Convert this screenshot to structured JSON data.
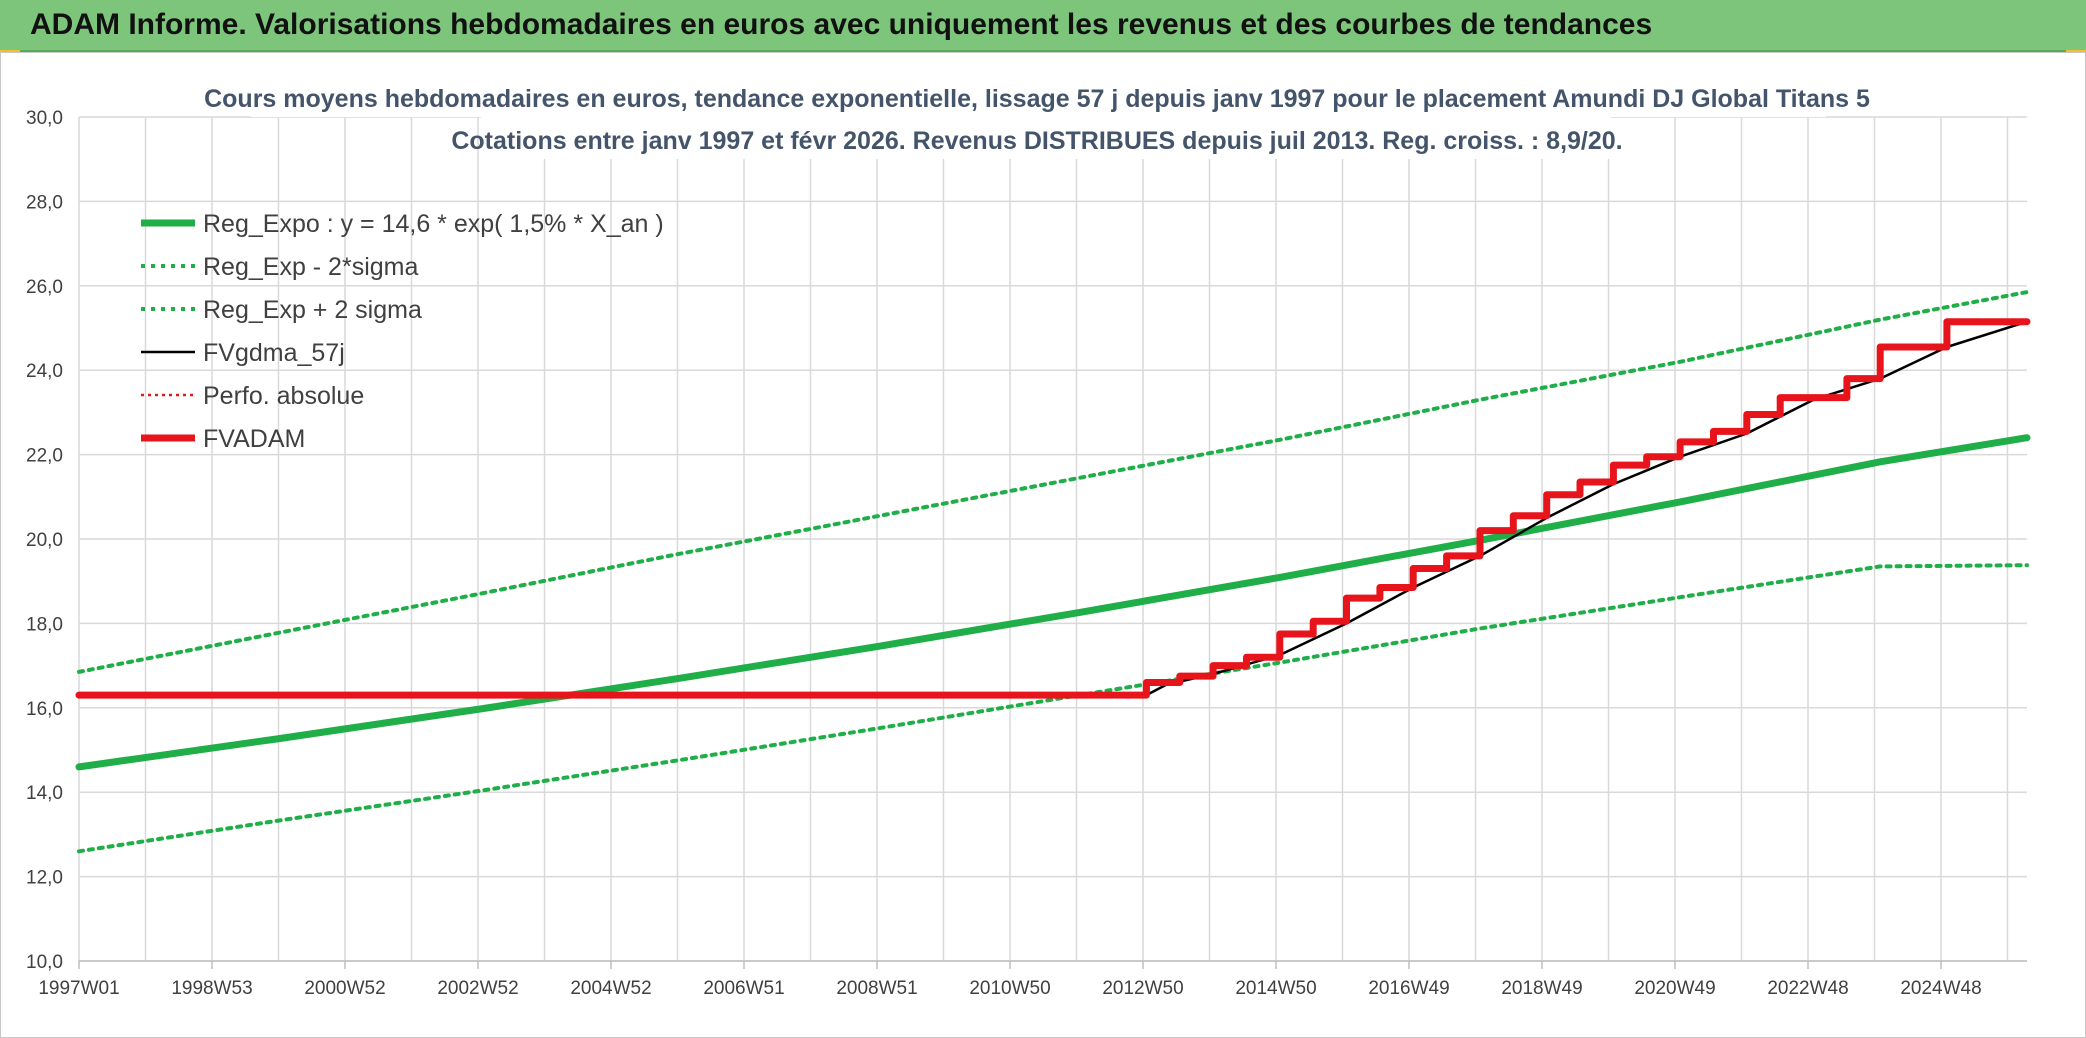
{
  "header": {
    "title": "ADAM Informe. Valorisations hebdomadaires en euros avec uniquement les revenus et des courbes de tendances"
  },
  "chart_data": {
    "type": "line",
    "title": "Cours moyens hebdomadaires en euros, tendance exponentielle, lissage 57 j depuis janv 1997 pour le placement Amundi DJ Global Titans 5",
    "subtitle": "Cotations entre janv 1997 et févr 2026. Revenus DISTRIBUES depuis juil 2013. Reg. croiss. : 8,9/20.",
    "xlabel": "",
    "ylabel": "",
    "x_ticks": [
      "1997W01",
      "1998W53",
      "2000W52",
      "2002W52",
      "2004W52",
      "2006W51",
      "2008W51",
      "2010W50",
      "2012W50",
      "2014W50",
      "2016W49",
      "2018W49",
      "2020W49",
      "2022W48",
      "2024W48"
    ],
    "x_range": [
      1997.0,
      2026.2
    ],
    "y_range": [
      10,
      30
    ],
    "y_ticks": [
      "10,0",
      "12,0",
      "14,0",
      "16,0",
      "18,0",
      "20,0",
      "22,0",
      "24,0",
      "26,0",
      "28,0",
      "30,0"
    ],
    "grid": true,
    "legend_position": "top-left",
    "series": [
      {
        "name": "Reg_Expo : y = 14,6 * exp( 1,5% *  X_an )",
        "color": "#1fae48",
        "style": "solid-thick",
        "x": [
          1997.0,
          2000.0,
          2003.0,
          2006.0,
          2009.0,
          2012.0,
          2015.0,
          2018.0,
          2021.0,
          2024.0,
          2026.2
        ],
        "y": [
          14.6,
          15.27,
          15.97,
          16.7,
          17.46,
          18.26,
          19.09,
          19.97,
          20.88,
          21.83,
          22.4
        ]
      },
      {
        "name": "Reg_Exp - 2*sigma",
        "color": "#1fae48",
        "style": "dotted",
        "x": [
          1997.0,
          2000.0,
          2003.0,
          2006.0,
          2009.0,
          2012.0,
          2015.0,
          2018.0,
          2021.0,
          2024.0,
          2026.2
        ],
        "y": [
          12.6,
          13.33,
          14.03,
          14.76,
          15.52,
          16.3,
          17.07,
          17.88,
          18.62,
          19.35,
          19.38
        ]
      },
      {
        "name": "Reg_Exp + 2 sigma",
        "color": "#1fae48",
        "style": "dotted",
        "x": [
          1997.0,
          2000.0,
          2003.0,
          2006.0,
          2009.0,
          2012.0,
          2015.0,
          2018.0,
          2021.0,
          2024.0,
          2026.2
        ],
        "y": [
          16.85,
          17.78,
          18.7,
          19.65,
          20.55,
          21.45,
          22.35,
          23.3,
          24.2,
          25.2,
          25.85
        ]
      },
      {
        "name": "FVgdma_57j",
        "color": "#000000",
        "style": "solid",
        "x": [
          1997.0,
          2013.0,
          2013.3,
          2014.0,
          2015.0,
          2016.0,
          2017.0,
          2018.0,
          2019.0,
          2020.0,
          2021.0,
          2022.0,
          2023.0,
          2024.0,
          2025.0,
          2026.2
        ],
        "y": [
          16.3,
          16.3,
          16.55,
          16.8,
          17.25,
          18.0,
          18.85,
          19.6,
          20.5,
          21.3,
          21.95,
          22.5,
          23.3,
          23.8,
          24.55,
          25.15
        ]
      },
      {
        "name": "Perfo. absolue",
        "color": "#e31a1c",
        "style": "dotted-thin",
        "x": [],
        "y": []
      },
      {
        "name": "FVADAM",
        "color": "#e8141b",
        "style": "solid-thick",
        "x": [
          1997.0,
          2013.0,
          2013.0,
          2013.5,
          2013.5,
          2014.0,
          2014.0,
          2014.5,
          2014.5,
          2015.0,
          2015.0,
          2015.5,
          2015.5,
          2016.0,
          2016.0,
          2016.5,
          2016.5,
          2017.0,
          2017.0,
          2017.5,
          2017.5,
          2018.0,
          2018.0,
          2018.5,
          2018.5,
          2019.0,
          2019.0,
          2019.5,
          2019.5,
          2020.0,
          2020.0,
          2020.5,
          2020.5,
          2021.0,
          2021.0,
          2021.5,
          2021.5,
          2022.0,
          2022.0,
          2022.5,
          2022.5,
          2023.0,
          2023.0,
          2023.5,
          2023.5,
          2024.0,
          2024.0,
          2025.0,
          2025.0,
          2026.0,
          2026.0,
          2026.2
        ],
        "y": [
          16.3,
          16.3,
          16.6,
          16.6,
          16.75,
          16.75,
          17.0,
          17.0,
          17.2,
          17.2,
          17.75,
          17.75,
          18.05,
          18.05,
          18.6,
          18.6,
          18.85,
          18.85,
          19.3,
          19.3,
          19.6,
          19.6,
          20.2,
          20.2,
          20.55,
          20.55,
          21.05,
          21.05,
          21.35,
          21.35,
          21.75,
          21.75,
          21.95,
          21.95,
          22.3,
          22.3,
          22.55,
          22.55,
          22.95,
          22.95,
          23.35,
          23.35,
          23.35,
          23.35,
          23.8,
          23.8,
          24.55,
          24.55,
          25.15,
          25.15,
          25.15,
          25.15
        ]
      }
    ]
  }
}
